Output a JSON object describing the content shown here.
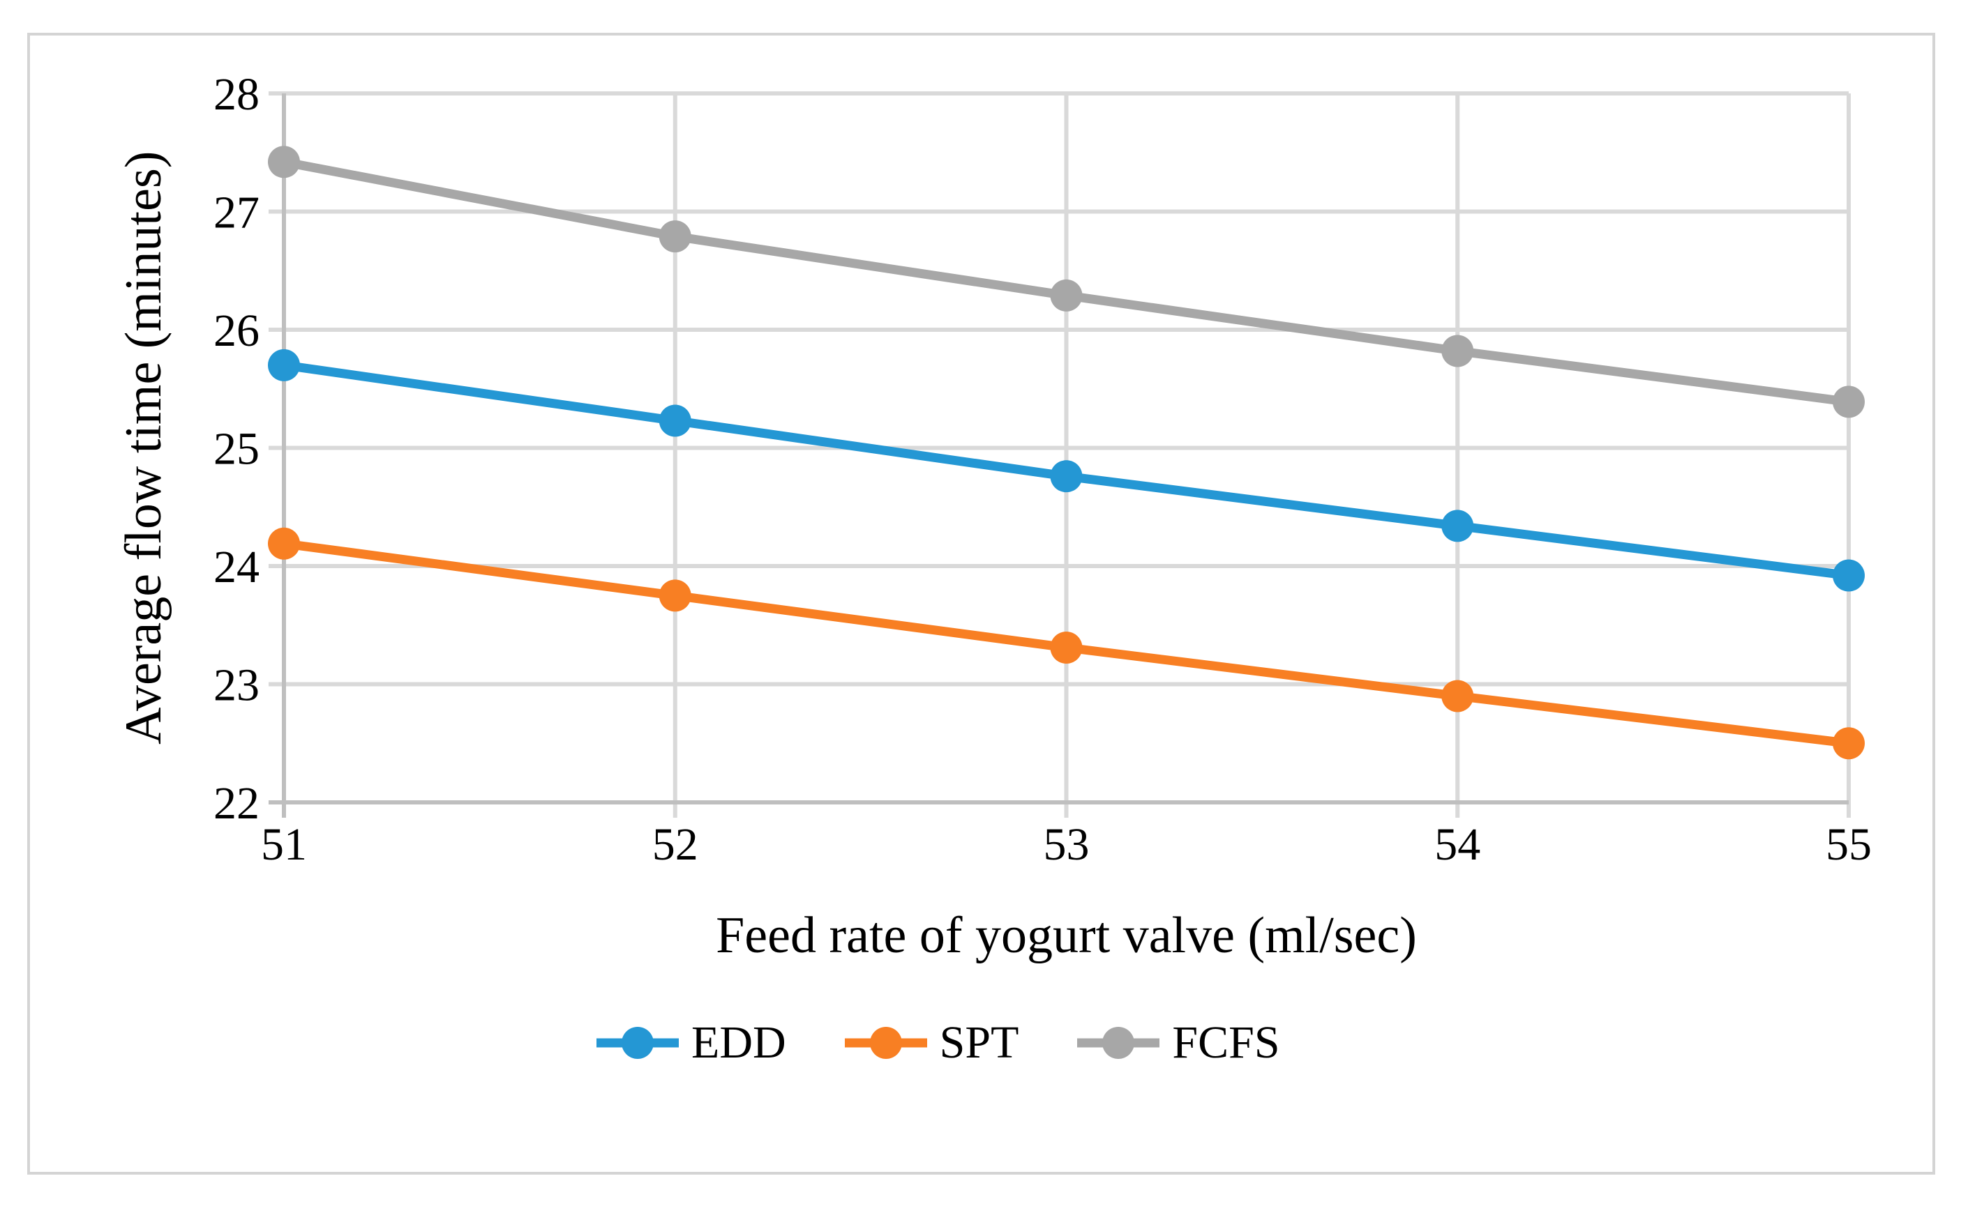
{
  "figure": {
    "background": "#ffffff",
    "border_color": "#d4d4d4"
  },
  "styles": {
    "grid_color": "#d9d9d9",
    "axis_color": "#bfbfbf",
    "text_color": "#000000",
    "line_width": 13,
    "marker_radius": 23
  },
  "chart_data": {
    "type": "line",
    "title": "",
    "xlabel": "Feed rate of yogurt valve (ml/sec)",
    "ylabel": "Average flow time (minutes)",
    "x": [
      51,
      52,
      53,
      54,
      55
    ],
    "xtick_labels": [
      "51",
      "52",
      "53",
      "54",
      "55"
    ],
    "ylim": [
      22,
      28
    ],
    "yticks": [
      22,
      23,
      24,
      25,
      26,
      27,
      28
    ],
    "grid": true,
    "legend_position": "bottom-center",
    "series": [
      {
        "name": "EDD",
        "color": "#2497d4",
        "values": [
          25.7,
          25.23,
          24.76,
          24.34,
          23.92
        ]
      },
      {
        "name": "SPT",
        "color": "#f87f23",
        "values": [
          24.19,
          23.75,
          23.31,
          22.9,
          22.5
        ]
      },
      {
        "name": "FCFS",
        "color": "#a7a7a7",
        "values": [
          27.42,
          26.79,
          26.29,
          25.82,
          25.39
        ]
      }
    ]
  }
}
